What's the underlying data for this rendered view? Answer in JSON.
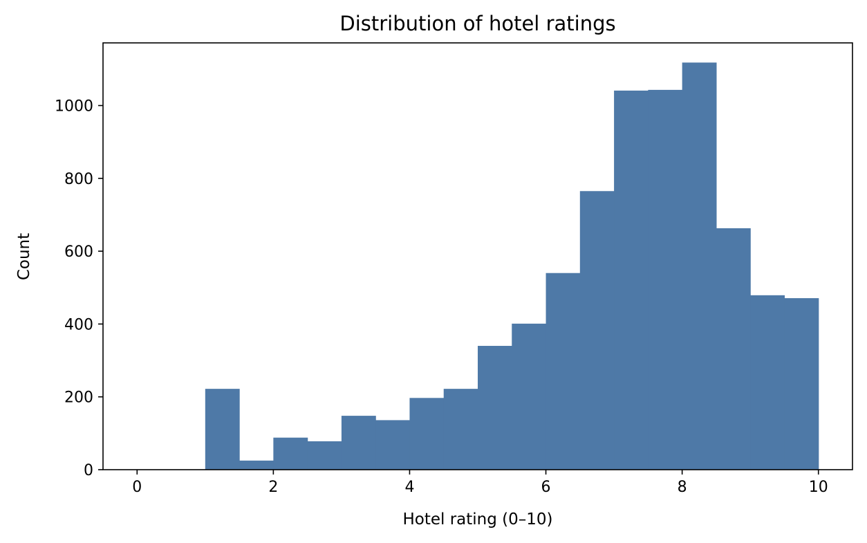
{
  "chart_data": {
    "type": "bar",
    "title": "Distribution of hotel ratings",
    "xlabel": "Hotel rating (0–10)",
    "ylabel": "Count",
    "xlim": [
      -0.5,
      10.5
    ],
    "ylim": [
      0,
      1172
    ],
    "xticks": [
      0,
      2,
      4,
      6,
      8,
      10
    ],
    "yticks": [
      0,
      200,
      400,
      600,
      800,
      1000
    ],
    "bin_edges": [
      1.0,
      1.5,
      2.0,
      2.5,
      3.0,
      3.5,
      4.0,
      4.5,
      5.0,
      5.5,
      6.0,
      6.5,
      7.0,
      7.5,
      8.0,
      8.5,
      9.0,
      9.5,
      10.0
    ],
    "values": [
      222,
      25,
      88,
      78,
      148,
      136,
      197,
      222,
      340,
      401,
      540,
      765,
      1041,
      1043,
      1118,
      663,
      479,
      471
    ],
    "bar_color": "#4e79a7",
    "grid": false,
    "legend": false
  }
}
